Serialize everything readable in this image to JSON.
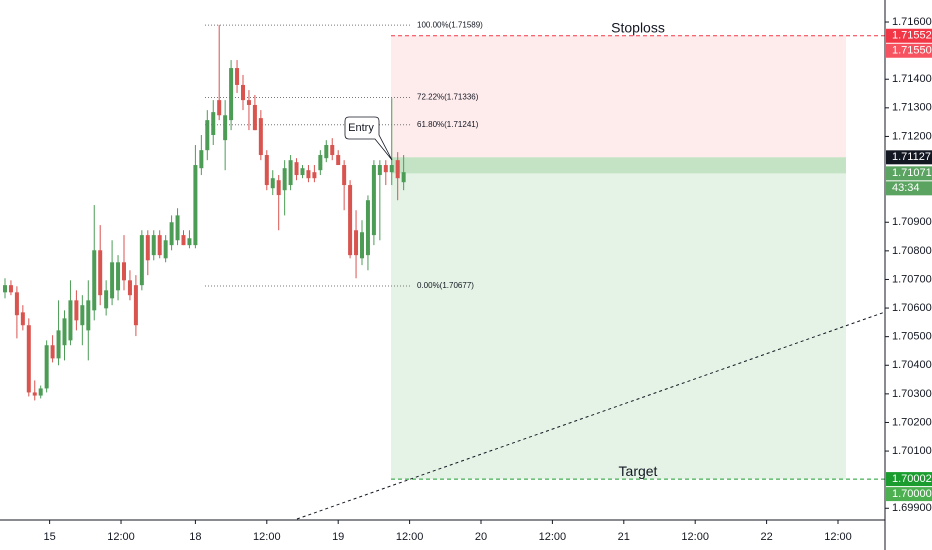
{
  "chart_data": {
    "type": "candlestick",
    "up_color": "#4c9c56",
    "down_color": "#d9534f",
    "ylim": [
      1.69859,
      1.71677
    ],
    "xlim": [
      -0.84,
      147.9
    ],
    "yticks": [
      {
        "value": 1.716,
        "label": "1.71600"
      },
      {
        "value": 1.714,
        "label": "1.71400"
      },
      {
        "value": 1.713,
        "label": "1.71300"
      },
      {
        "value": 1.712,
        "label": "1.71200"
      },
      {
        "value": 1.709,
        "label": "1.70900"
      },
      {
        "value": 1.708,
        "label": "1.70800"
      },
      {
        "value": 1.707,
        "label": "1.70700"
      },
      {
        "value": 1.706,
        "label": "1.70600"
      },
      {
        "value": 1.705,
        "label": "1.70500"
      },
      {
        "value": 1.704,
        "label": "1.70400"
      },
      {
        "value": 1.703,
        "label": "1.70300"
      },
      {
        "value": 1.702,
        "label": "1.70200"
      },
      {
        "value": 1.701,
        "label": "1.70100"
      },
      {
        "value": 1.699,
        "label": "1.69900"
      }
    ],
    "xticks": [
      {
        "value": 7.5,
        "label": "15"
      },
      {
        "value": 19.5,
        "label": "12:00"
      },
      {
        "value": 32,
        "label": "18"
      },
      {
        "value": 44,
        "label": "12:00"
      },
      {
        "value": 56,
        "label": "19"
      },
      {
        "value": 68,
        "label": "12:00"
      },
      {
        "value": 80,
        "label": "20"
      },
      {
        "value": 92,
        "label": "12:00"
      },
      {
        "value": 104,
        "label": "21"
      },
      {
        "value": 116,
        "label": "12:00"
      },
      {
        "value": 128,
        "label": "22"
      },
      {
        "value": 140,
        "label": "12:00"
      }
    ],
    "open": [
      1.70655,
      1.7068,
      1.70655,
      1.70585,
      1.7054,
      1.70305,
      1.70294,
      1.70319,
      1.7047,
      1.70424,
      1.7047,
      1.70487,
      1.70627,
      1.7054,
      1.70522,
      1.70592,
      1.70802,
      1.70599,
      1.70634,
      1.70662,
      1.7076,
      1.70697,
      1.7068,
      1.7068,
      1.70855,
      1.70785,
      1.70855,
      1.70774,
      1.7082,
      1.70837,
      1.70855,
      1.7082,
      1.7082,
      1.71089,
      1.71152,
      1.71205,
      1.71327,
      1.71187,
      1.71257,
      1.71439,
      1.7138,
      1.71327,
      1.7131,
      1.71264,
      1.71135,
      1.71019,
      1.71047,
      1.71012,
      1.7103,
      1.7111,
      1.71065,
      1.71082,
      1.71075,
      1.71082,
      1.71124,
      1.7117,
      1.71135,
      1.711,
      1.7103,
      1.70872,
      1.70774,
      1.70785,
      1.70855,
      1.71065,
      1.711,
      1.71075,
      1.71117,
      1.7104
    ],
    "high": [
      1.70704,
      1.70697,
      1.70676,
      1.7061,
      1.70564,
      1.70347,
      1.70329,
      1.70487,
      1.70505,
      1.70627,
      1.70592,
      1.70697,
      1.70662,
      1.70645,
      1.70697,
      1.7096,
      1.7089,
      1.70697,
      1.70837,
      1.70785,
      1.70855,
      1.70732,
      1.70715,
      1.70872,
      1.70872,
      1.70872,
      1.70872,
      1.70855,
      1.70924,
      1.70949,
      1.70872,
      1.70872,
      1.7117,
      1.71205,
      1.71292,
      1.71327,
      1.7159,
      1.71327,
      1.71467,
      1.71467,
      1.71415,
      1.71362,
      1.71345,
      1.71292,
      1.71152,
      1.71082,
      1.71065,
      1.71117,
      1.71135,
      1.71124,
      1.711,
      1.711,
      1.711,
      1.71152,
      1.71187,
      1.71194,
      1.71152,
      1.71117,
      1.71047,
      1.70942,
      1.70907,
      1.70994,
      1.71117,
      1.71117,
      1.71117,
      1.71334,
      1.71145,
      1.71135
    ],
    "low": [
      1.70634,
      1.70645,
      1.70494,
      1.70522,
      1.70291,
      1.70277,
      1.70284,
      1.70305,
      1.7041,
      1.704,
      1.70417,
      1.7047,
      1.70522,
      1.7047,
      1.70417,
      1.70557,
      1.7061,
      1.70574,
      1.7061,
      1.70627,
      1.70662,
      1.70627,
      1.70502,
      1.70662,
      1.70715,
      1.70767,
      1.70774,
      1.7076,
      1.70802,
      1.7082,
      1.7082,
      1.70809,
      1.70809,
      1.71065,
      1.71117,
      1.7117,
      1.71257,
      1.71082,
      1.71222,
      1.71352,
      1.71292,
      1.71222,
      1.71222,
      1.71117,
      1.71012,
      1.70995,
      1.70872,
      1.70924,
      1.71012,
      1.71047,
      1.71054,
      1.7104,
      1.7104,
      1.71065,
      1.7111,
      1.71117,
      1.711,
      1.70942,
      1.70774,
      1.70704,
      1.7075,
      1.70732,
      1.7082,
      1.70837,
      1.7103,
      1.7103,
      1.70977,
      1.71012
    ],
    "close": [
      1.7068,
      1.70655,
      1.70575,
      1.7054,
      1.70305,
      1.70294,
      1.70319,
      1.7047,
      1.70424,
      1.70522,
      1.70564,
      1.70627,
      1.70557,
      1.7061,
      1.70627,
      1.70802,
      1.70645,
      1.70662,
      1.7076,
      1.7076,
      1.70697,
      1.70645,
      1.7054,
      1.70855,
      1.70767,
      1.70855,
      1.70785,
      1.70837,
      1.709,
      1.70924,
      1.7082,
      1.70844,
      1.711,
      1.71152,
      1.71257,
      1.71285,
      1.71274,
      1.71274,
      1.71439,
      1.7138,
      1.71327,
      1.7131,
      1.71222,
      1.71135,
      1.7103,
      1.71054,
      1.70995,
      1.71089,
      1.71117,
      1.71065,
      1.71089,
      1.71054,
      1.71054,
      1.71135,
      1.7117,
      1.71135,
      1.711,
      1.7103,
      1.70785,
      1.70785,
      1.70865,
      1.70977,
      1.711,
      1.711,
      1.71075,
      1.711,
      1.71054,
      1.71075
    ],
    "fib_levels": [
      {
        "value": 1.71589,
        "label": "100.00%(1.71589)"
      },
      {
        "value": 1.71336,
        "label": "72.22%(1.71336)"
      },
      {
        "value": 1.71241,
        "label": "61.80%(1.71241)"
      },
      {
        "value": 1.70677,
        "label": "0.00%(1.70677)"
      }
    ],
    "position": {
      "stoploss": 1.71552,
      "entry": 1.71127,
      "target": 1.70002,
      "stoploss_label": "Stoploss",
      "target_label": "Target",
      "entry_label": "Entry"
    },
    "axis_labels": [
      {
        "value": 1.71552,
        "color": "#f23645"
      },
      {
        "value": 1.7155,
        "label": "1.71550",
        "color": "#f7525f"
      },
      {
        "value": 1.71127,
        "color": "#131722"
      },
      {
        "value": 1.71071,
        "color": "#5ba361"
      },
      {
        "value": 1.70002,
        "color": "#1a9c2e"
      },
      {
        "value": 1.7,
        "label": "1.70000",
        "color": "#4caf50"
      }
    ],
    "countdown": "43:34"
  }
}
